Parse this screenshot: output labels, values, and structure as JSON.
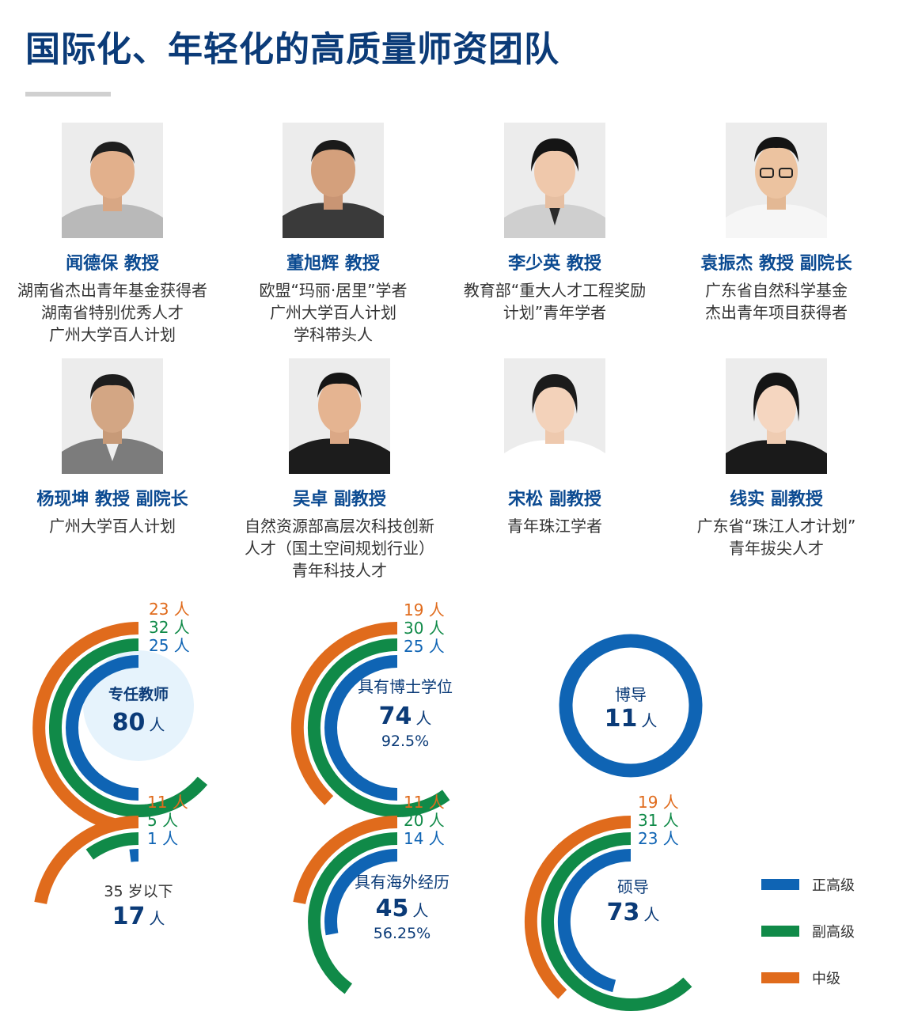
{
  "title": "国际化、年轻化的高质量师资团队",
  "colors": {
    "senior": "#0f64b4",
    "associate": "#108a48",
    "middle": "#e06b1c",
    "navy": "#0b3b78",
    "light_circle": "#e6f3fc"
  },
  "people": [
    {
      "name": "闻德保  教授",
      "lines": [
        "湖南省杰出青年基金获得者",
        "湖南省特别优秀人才",
        "广州大学百人计划"
      ]
    },
    {
      "name": "董旭辉  教授",
      "lines": [
        "欧盟“玛丽·居里”学者",
        "广州大学百人计划",
        "学科带头人"
      ]
    },
    {
      "name": "李少英  教授",
      "lines": [
        "教育部“重大人才工程奖励",
        "计划”青年学者"
      ]
    },
    {
      "name": "袁振杰  教授  副院长",
      "lines": [
        "广东省自然科学基金",
        "杰出青年项目获得者"
      ]
    },
    {
      "name": "杨现坤  教授  副院长",
      "lines": [
        "广州大学百人计划"
      ]
    },
    {
      "name": "吴卓  副教授",
      "lines": [
        "自然资源部高层次科技创新",
        "人才（国土空间规划行业）",
        "青年科技人才"
      ]
    },
    {
      "name": "宋松  副教授",
      "lines": [
        "青年珠江学者"
      ]
    },
    {
      "name": "线实  副教授",
      "lines": [
        "广东省“珠江人才计划”",
        "青年拔尖人才"
      ]
    }
  ],
  "stats": [
    {
      "label": "专任教师",
      "value": "80",
      "unit": "人",
      "middle": "23",
      "associate": "32",
      "senior": "25",
      "labels": [
        "23 人",
        "32 人",
        "25 人"
      ]
    },
    {
      "label": "具有博士学位",
      "value": "74",
      "unit": "人",
      "pct": "92.5%",
      "middle": "19",
      "associate": "30",
      "senior": "25",
      "labels": [
        "19 人",
        "30 人",
        "25 人"
      ]
    },
    {
      "label": "博导",
      "value": "11",
      "unit": "人",
      "senior": "11"
    },
    {
      "label": "35 岁以下",
      "value": "17",
      "unit": "人",
      "middle": "11",
      "associate": "5",
      "senior": "1",
      "labels": [
        "11 人",
        "5 人",
        "1 人"
      ]
    },
    {
      "label": "具有海外经历",
      "value": "45",
      "unit": "人",
      "pct": "56.25%",
      "middle": "11",
      "associate": "20",
      "senior": "14",
      "labels": [
        "11 人",
        "20 人",
        "14 人"
      ]
    },
    {
      "label": "硕导",
      "value": "73",
      "unit": "人",
      "middle": "19",
      "associate": "31",
      "senior": "23",
      "labels": [
        "19 人",
        "31 人",
        "23 人"
      ]
    }
  ],
  "legend": [
    "正高级",
    "副高级",
    "中级"
  ]
}
